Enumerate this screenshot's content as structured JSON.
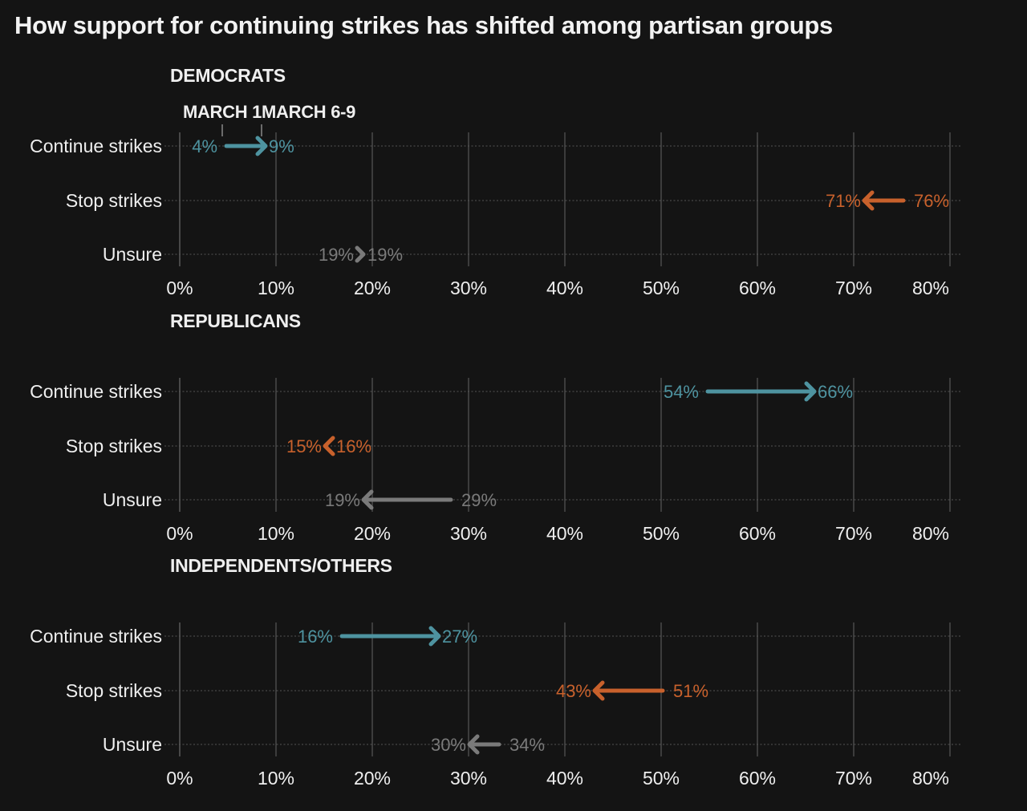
{
  "title": "How support for continuing strikes has shifted among partisan groups",
  "colors": {
    "background": "#141414",
    "continue": "#4e93a0",
    "stop": "#c8612c",
    "unsure": "#7a7a7a",
    "grid": "#4a4a4a",
    "text": "#efefef"
  },
  "chart_data": {
    "type": "dumbbell-arrow",
    "title": "How support for continuing strikes has shifted among partisan groups",
    "legend": {
      "start_label": "MARCH 1",
      "end_label": "MARCH 6-9",
      "placement": "top-left, first panel"
    },
    "xlim": [
      0,
      80
    ],
    "ticks": [
      0,
      10,
      20,
      30,
      40,
      50,
      60,
      70,
      80
    ],
    "tick_labels": [
      "0%",
      "10%",
      "20%",
      "30%",
      "40%",
      "50%",
      "60%",
      "70%",
      "80%"
    ],
    "grid": true,
    "categories": [
      "Continue strikes",
      "Stop strikes",
      "Unsure"
    ],
    "panels": [
      {
        "name": "DEMOCRATS",
        "rows": [
          {
            "label": "Continue strikes",
            "series": "continue",
            "march_1": 4,
            "march_6_9": 9,
            "start_label": "4%",
            "end_label": "9%"
          },
          {
            "label": "Stop strikes",
            "series": "stop",
            "march_1": 76,
            "march_6_9": 71,
            "start_label": "76%",
            "end_label": "71%"
          },
          {
            "label": "Unsure",
            "series": "unsure",
            "march_1": 19,
            "march_6_9": 19,
            "start_label": "19%",
            "end_label": "19%"
          }
        ]
      },
      {
        "name": "REPUBLICANS",
        "rows": [
          {
            "label": "Continue strikes",
            "series": "continue",
            "march_1": 54,
            "march_6_9": 66,
            "start_label": "54%",
            "end_label": "66%"
          },
          {
            "label": "Stop strikes",
            "series": "stop",
            "march_1": 16,
            "march_6_9": 15,
            "start_label": "16%",
            "end_label": "15%"
          },
          {
            "label": "Unsure",
            "series": "unsure",
            "march_1": 29,
            "march_6_9": 19,
            "start_label": "29%",
            "end_label": "19%"
          }
        ]
      },
      {
        "name": "INDEPENDENTS/OTHERS",
        "rows": [
          {
            "label": "Continue strikes",
            "series": "continue",
            "march_1": 16,
            "march_6_9": 27,
            "start_label": "16%",
            "end_label": "27%"
          },
          {
            "label": "Stop strikes",
            "series": "stop",
            "march_1": 51,
            "march_6_9": 43,
            "start_label": "51%",
            "end_label": "43%"
          },
          {
            "label": "Unsure",
            "series": "unsure",
            "march_1": 34,
            "march_6_9": 30,
            "start_label": "34%",
            "end_label": "30%"
          }
        ]
      }
    ]
  }
}
